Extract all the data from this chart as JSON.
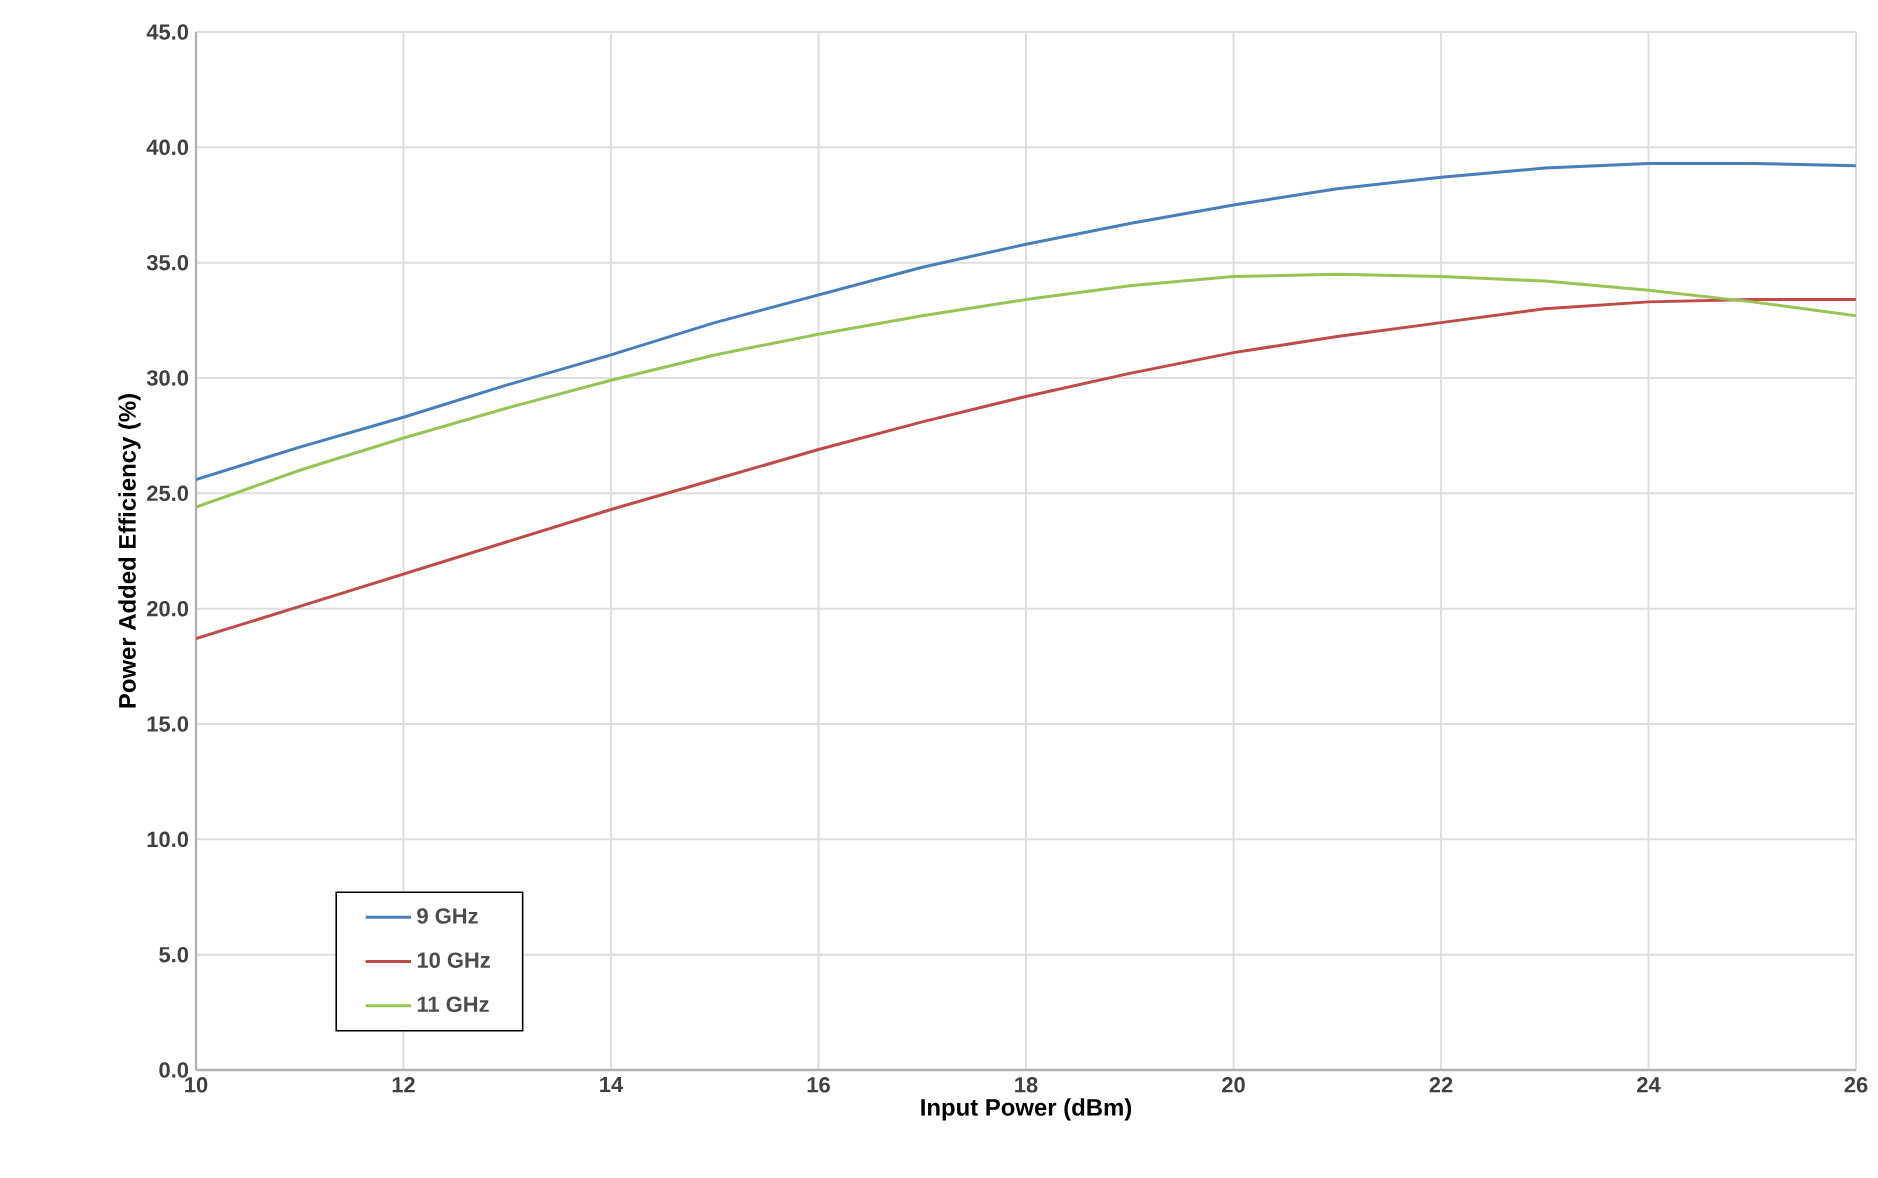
{
  "chart_data": {
    "type": "line",
    "xlabel": "Input Power (dBm)",
    "ylabel": "Power Added Efficiency  (%)",
    "x": [
      10,
      11,
      12,
      13,
      14,
      15,
      16,
      17,
      18,
      19,
      20,
      21,
      22,
      23,
      24,
      25,
      26
    ],
    "series": [
      {
        "name": "9 GHz",
        "color": "#4a7ebb",
        "values": [
          25.6,
          27.0,
          28.3,
          29.7,
          31.0,
          32.4,
          33.6,
          34.8,
          35.8,
          36.7,
          37.5,
          38.2,
          38.7,
          39.1,
          39.3,
          39.3,
          39.2
        ]
      },
      {
        "name": "10 GHz",
        "color": "#be4b48",
        "values": [
          18.7,
          20.1,
          21.5,
          22.9,
          24.3,
          25.6,
          26.9,
          28.1,
          29.2,
          30.2,
          31.1,
          31.8,
          32.4,
          33.0,
          33.3,
          33.4,
          33.4
        ]
      },
      {
        "name": "11 GHz",
        "color": "#98c455",
        "values": [
          24.4,
          26.0,
          27.4,
          28.7,
          29.9,
          31.0,
          31.9,
          32.7,
          33.4,
          34.0,
          34.4,
          34.5,
          34.4,
          34.2,
          33.8,
          33.3,
          32.7
        ]
      }
    ],
    "xlim": [
      10,
      26
    ],
    "xticks": [
      10,
      12,
      14,
      16,
      18,
      20,
      22,
      24,
      26
    ],
    "ylim": [
      0,
      45
    ],
    "yticks": [
      {
        "value": 0,
        "label": "0.0"
      },
      {
        "value": 5,
        "label": "5.0"
      },
      {
        "value": 10,
        "label": "10.0"
      },
      {
        "value": 15,
        "label": "15.0"
      },
      {
        "value": 20,
        "label": "20.0"
      },
      {
        "value": 25,
        "label": "25.0"
      },
      {
        "value": 30,
        "label": "30.0"
      },
      {
        "value": 35,
        "label": "35.0"
      },
      {
        "value": 40,
        "label": "40.0"
      },
      {
        "value": 45,
        "label": "45.0"
      }
    ],
    "grid": true,
    "legend": "bottom left",
    "marker": "none",
    "line_style": "solid"
  }
}
